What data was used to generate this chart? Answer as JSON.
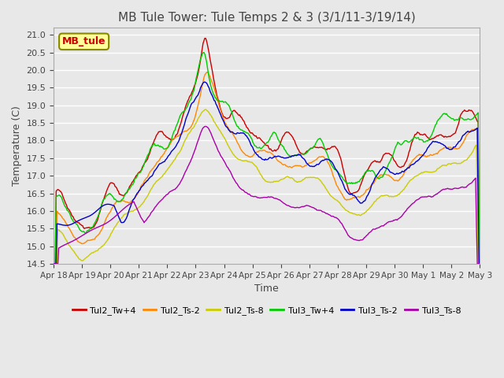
{
  "title": "MB Tule Tower: Tule Temps 2 & 3 (3/1/11-3/19/14)",
  "xlabel": "Time",
  "ylabel": "Temperature (C)",
  "ylim": [
    14.5,
    21.2
  ],
  "yticks": [
    14.5,
    15.0,
    15.5,
    16.0,
    16.5,
    17.0,
    17.5,
    18.0,
    18.5,
    19.0,
    19.5,
    20.0,
    20.5,
    21.0
  ],
  "background_color": "#e8e8e8",
  "plot_background": "#e8e8e8",
  "grid_color": "#ffffff",
  "title_fontsize": 11,
  "axis_fontsize": 9,
  "legend_box_label": "MB_tule",
  "legend_box_color": "#ffff99",
  "legend_box_edge": "#888800",
  "lines": [
    {
      "label": "Tul2_Tw+4",
      "color": "#cc0000"
    },
    {
      "label": "Tul2_Ts-2",
      "color": "#ff8800"
    },
    {
      "label": "Tul2_Ts-8",
      "color": "#cccc00"
    },
    {
      "label": "Tul3_Tw+4",
      "color": "#00cc00"
    },
    {
      "label": "Tul3_Ts-2",
      "color": "#0000cc"
    },
    {
      "label": "Tul3_Ts-8",
      "color": "#aa00aa"
    }
  ],
  "xtick_labels": [
    "Apr 18",
    "Apr 19",
    "Apr 20",
    "Apr 21",
    "Apr 22",
    "Apr 23",
    "Apr 24",
    "Apr 25",
    "Apr 26",
    "Apr 27",
    "Apr 28",
    "Apr 29",
    "Apr 30",
    "May 1",
    "May 2",
    "May 3"
  ],
  "n_points": 500
}
